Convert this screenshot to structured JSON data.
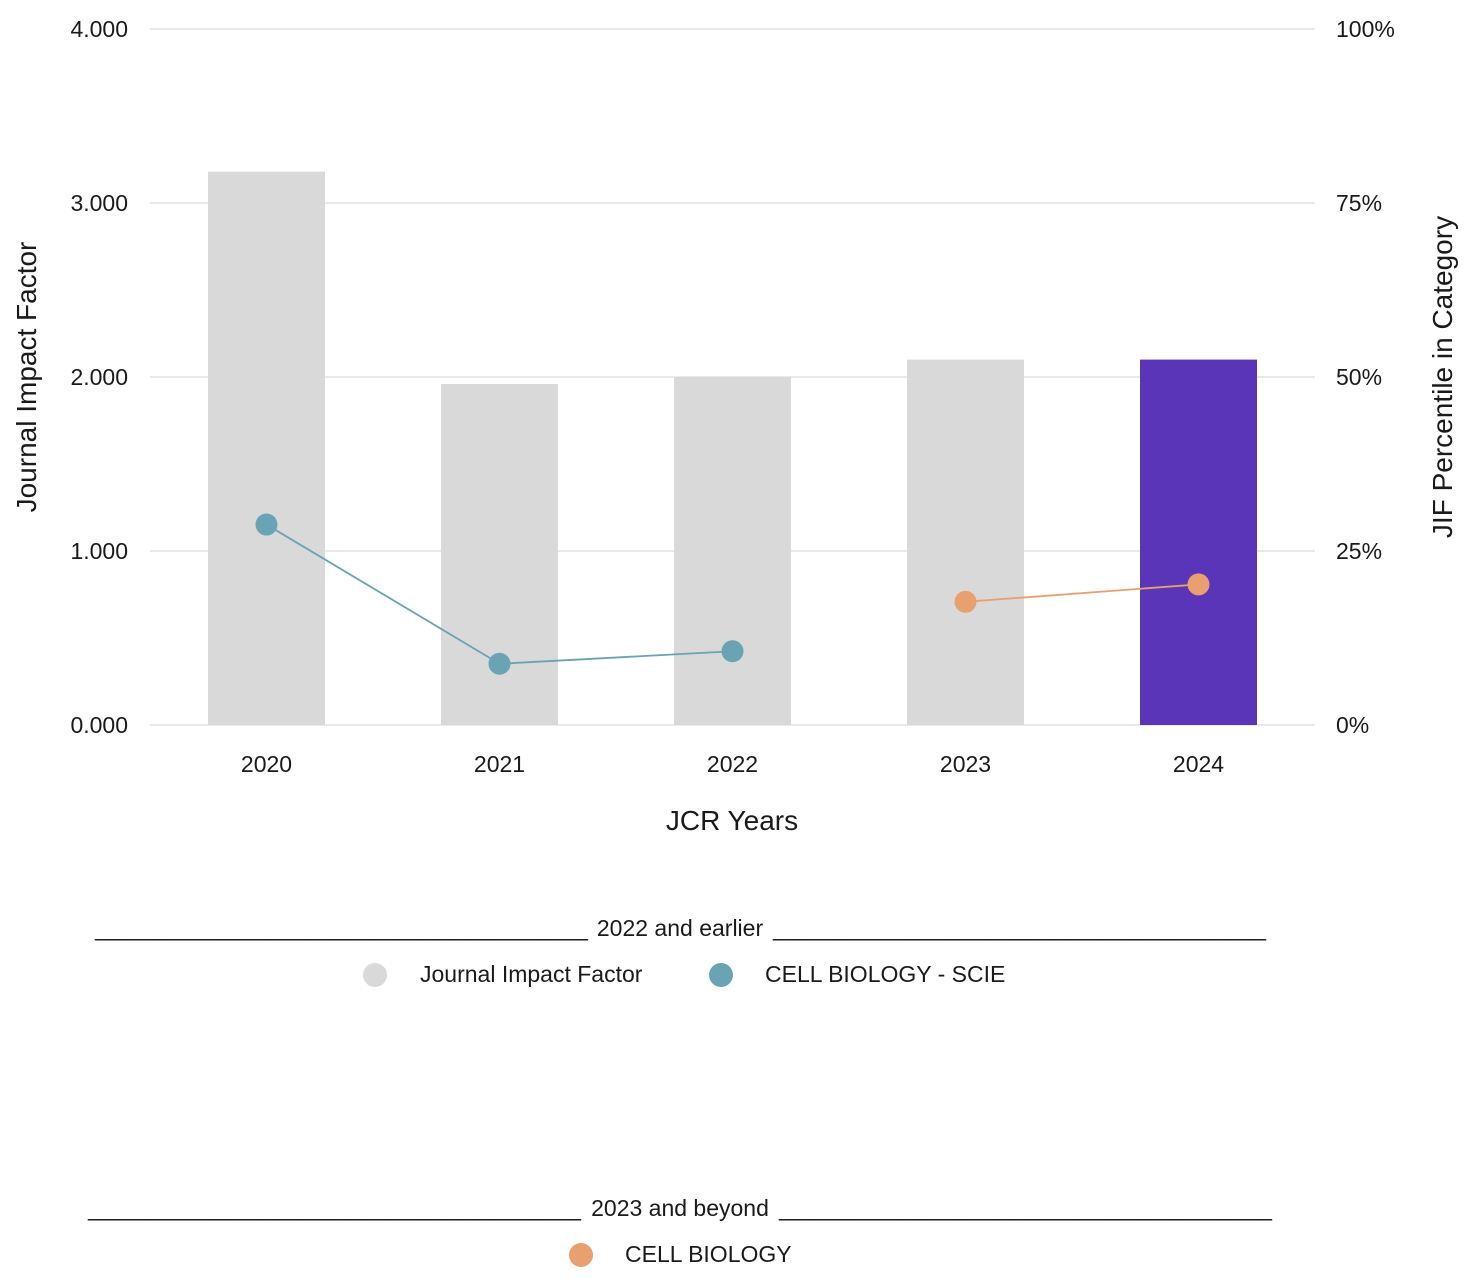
{
  "chart_data": {
    "type": "bar",
    "categories": [
      "2020",
      "2021",
      "2022",
      "2023",
      "2024"
    ],
    "xlabel": "JCR Years",
    "ylabel": "Journal Impact Factor",
    "ylabel_right": "JIF Percentile in Category",
    "ylim": [
      0,
      4
    ],
    "ylim_right": [
      0,
      100
    ],
    "y_ticks": [
      "0.000",
      "1.000",
      "2.000",
      "3.000",
      "4.000"
    ],
    "y_ticks_right": [
      "0%",
      "25%",
      "50%",
      "75%",
      "100%"
    ],
    "grid": true,
    "bars": {
      "name": "Journal Impact Factor",
      "values": [
        3.18,
        1.96,
        2.0,
        2.1,
        2.1
      ],
      "colors": [
        "#d9d9d9",
        "#d9d9d9",
        "#d9d9d9",
        "#d9d9d9",
        "#5a35b8"
      ]
    },
    "series": [
      {
        "name": "CELL BIOLOGY - SCIE",
        "axis": "right",
        "color": "#6aa3b4",
        "x": [
          "2020",
          "2021",
          "2022"
        ],
        "values": [
          28.8,
          8.8,
          10.6
        ]
      },
      {
        "name": "CELL BIOLOGY",
        "axis": "right",
        "color": "#e9a070",
        "x": [
          "2023",
          "2024"
        ],
        "values": [
          17.7,
          20.2
        ]
      }
    ],
    "legend": {
      "group1_title": "2022 and earlier",
      "group2_title": "2023 and beyond",
      "rule": "________________________________________________",
      "items_group1": [
        {
          "label": "Journal Impact Factor",
          "color": "#d9d9d9"
        },
        {
          "label": "CELL BIOLOGY - SCIE",
          "color": "#6aa3b4"
        }
      ],
      "items_group2": [
        {
          "label": "CELL BIOLOGY",
          "color": "#e9a070"
        }
      ]
    }
  }
}
